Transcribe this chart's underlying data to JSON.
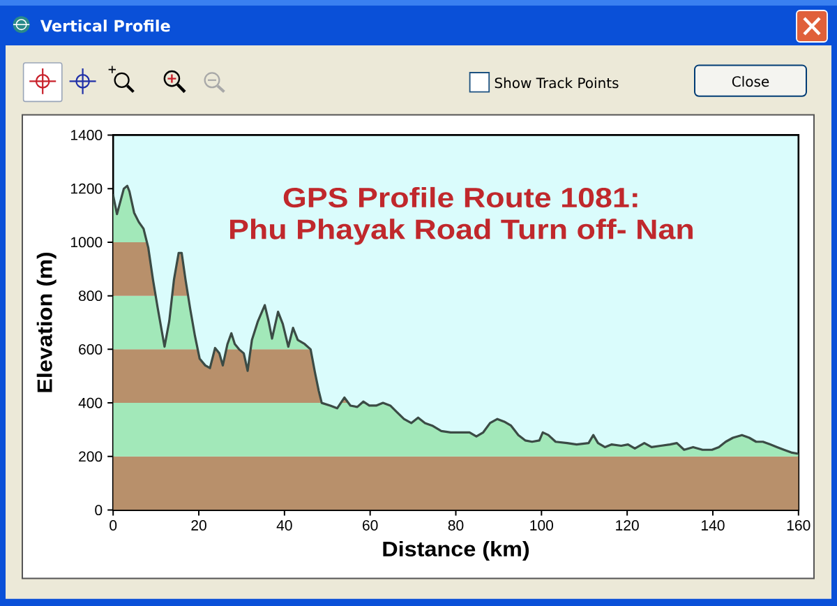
{
  "chart_data": {
    "type": "line",
    "title": "GPS Profile Route 1081:",
    "subtitle": "Phu Phayak Road Turn off- Nan",
    "xlabel": "Distance (km)",
    "ylabel": "Elevation (m)",
    "annotations": [
      "Vertical Profile",
      "Show Track Points",
      "Close"
    ],
    "x": [
      0,
      0.9,
      2.5,
      3.3,
      3.8,
      4.9,
      6.0,
      7.1,
      8.2,
      9.3,
      10.4,
      12.0,
      13.1,
      14.2,
      15.3,
      16.0,
      16.9,
      18.0,
      19.1,
      20.2,
      21.5,
      22.6,
      23.8,
      24.8,
      25.6,
      26.7,
      27.6,
      28.4,
      29.4,
      30.5,
      31.4,
      32.4,
      33.8,
      35.4,
      36.3,
      37.1,
      38.5,
      39.6,
      40.9,
      42.0,
      43.1,
      44.7,
      46.1,
      47.1,
      48.0,
      48.7,
      50.7,
      52.3,
      54.0,
      55.4,
      57.0,
      58.4,
      59.8,
      61.4,
      63.0,
      64.7,
      66.3,
      67.9,
      69.6,
      71.2,
      72.8,
      74.5,
      76.6,
      78.8,
      81.0,
      83.2,
      84.8,
      86.4,
      88.0,
      89.7,
      91.3,
      92.9,
      94.6,
      96.2,
      97.8,
      99.5,
      100.3,
      101.6,
      103.3,
      106.0,
      108.2,
      111.0,
      112.1,
      113.2,
      114.8,
      116.4,
      118.6,
      120.2,
      121.8,
      124.0,
      125.7,
      127.8,
      130.0,
      131.6,
      133.3,
      135.4,
      137.6,
      139.8,
      141.4,
      143.0,
      144.7,
      146.8,
      148.5,
      150.1,
      151.7,
      153.4,
      155.0,
      156.6,
      158.3,
      160
    ],
    "series": [
      {
        "color": "#3b4b45",
        "values": [
          1175,
          1105,
          1200,
          1210,
          1190,
          1110,
          1075,
          1050,
          980,
          860,
          755,
          610,
          705,
          860,
          960,
          960,
          860,
          750,
          650,
          565,
          540,
          530,
          605,
          585,
          540,
          620,
          660,
          620,
          600,
          585,
          520,
          635,
          705,
          765,
          705,
          640,
          740,
          695,
          610,
          680,
          635,
          620,
          600,
          515,
          445,
          400,
          390,
          380,
          420,
          390,
          385,
          405,
          390,
          390,
          400,
          390,
          365,
          340,
          325,
          345,
          325,
          315,
          295,
          290,
          290,
          290,
          275,
          290,
          325,
          340,
          330,
          315,
          280,
          260,
          255,
          260,
          290,
          280,
          255,
          250,
          245,
          250,
          280,
          250,
          235,
          245,
          240,
          245,
          230,
          250,
          235,
          240,
          245,
          250,
          225,
          235,
          225,
          225,
          235,
          255,
          270,
          280,
          270,
          255,
          255,
          245,
          235,
          225,
          215,
          210
        ]
      }
    ],
    "xlim": [
      0,
      160
    ],
    "ylim": [
      0,
      1400
    ],
    "xticks": [
      0,
      20,
      40,
      60,
      80,
      100,
      120,
      140,
      160
    ],
    "yticks": [
      0,
      200,
      400,
      600,
      800,
      1000,
      1200,
      1400
    ],
    "bands": [
      {
        "axis": "y",
        "from": 0,
        "to": 200,
        "color": "#b8906b"
      },
      {
        "axis": "y",
        "from": 200,
        "to": 400,
        "color": "#a2e8b9"
      },
      {
        "axis": "y",
        "from": 400,
        "to": 600,
        "color": "#b8906b"
      },
      {
        "axis": "y",
        "from": 600,
        "to": 800,
        "color": "#a2e8b9"
      },
      {
        "axis": "y",
        "from": 800,
        "to": 1000,
        "color": "#b8906b"
      },
      {
        "axis": "y",
        "from": 1000,
        "to": 1200,
        "color": "#a2e8b9"
      }
    ]
  }
}
